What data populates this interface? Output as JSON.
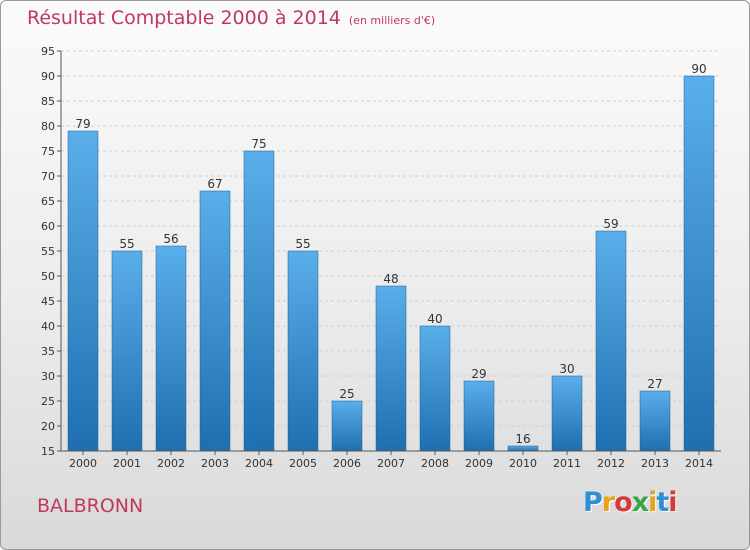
{
  "header": {
    "title": "Résultat Comptable 2000 à 2014",
    "unit": "(en milliers d'€)"
  },
  "footer": {
    "town": "BALBRONN",
    "logo_text": "Proxiti"
  },
  "colors": {
    "title": "#c0395d",
    "bar_top": "#5aaee9",
    "bar_bottom": "#1f6fb0",
    "grid": "#cfcfcf"
  },
  "chart_data": {
    "type": "bar",
    "title": "Résultat Comptable 2000 à 2014",
    "ylabel": "",
    "xlabel": "",
    "categories": [
      "2000",
      "2001",
      "2002",
      "2003",
      "2004",
      "2005",
      "2006",
      "2007",
      "2008",
      "2009",
      "2010",
      "2011",
      "2012",
      "2013",
      "2014"
    ],
    "values": [
      79,
      55,
      56,
      67,
      75,
      55,
      25,
      48,
      40,
      29,
      16,
      30,
      59,
      27,
      90
    ],
    "ylim": [
      15,
      95
    ],
    "yticks": [
      15,
      20,
      25,
      30,
      35,
      40,
      45,
      50,
      55,
      60,
      65,
      70,
      75,
      80,
      85,
      90,
      95
    ],
    "grid": true,
    "data_labels": true
  }
}
